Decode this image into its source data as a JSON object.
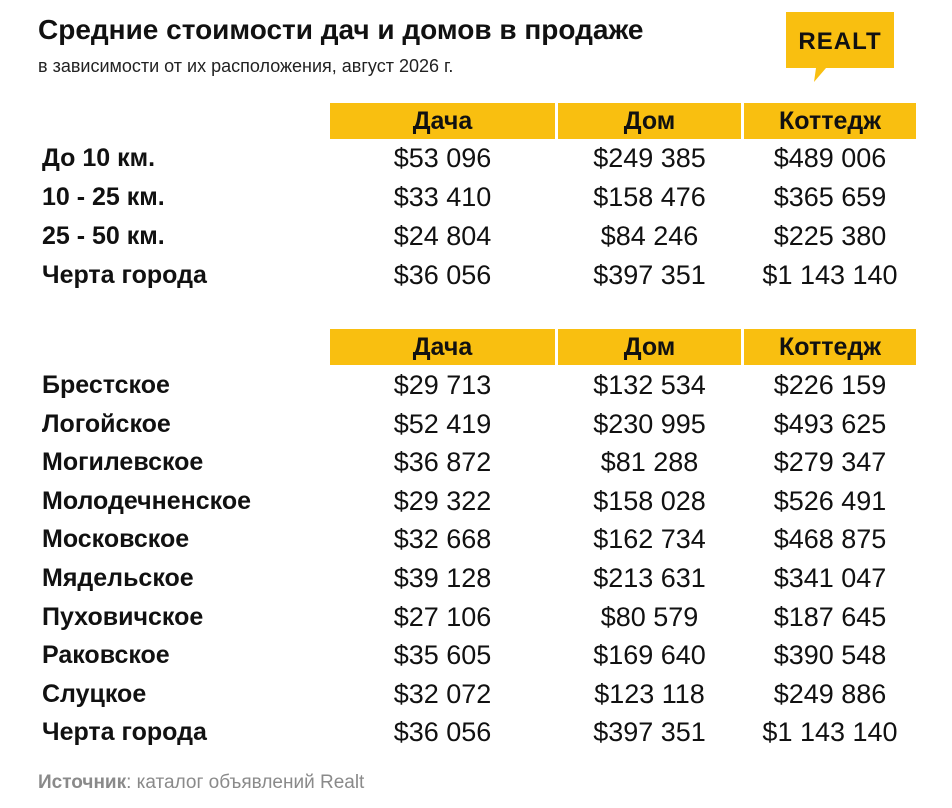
{
  "header": {
    "title": "Средние стоимости дач и домов в продаже",
    "subtitle": "в зависимости от их расположения, август 2026 г.",
    "logo_text": "REALT"
  },
  "colors": {
    "accent": "#f9bf10",
    "text": "#111111",
    "source": "#8a8a8a"
  },
  "chart_data": [
    {
      "type": "table",
      "columns": [
        "Дача",
        "Дом",
        "Коттедж"
      ],
      "rows": [
        {
          "label": "До 10 км.",
          "values": [
            "$53 096",
            "$249 385",
            "$489 006"
          ]
        },
        {
          "label": "10 - 25 км.",
          "values": [
            "$33 410",
            "$158 476",
            "$365 659"
          ]
        },
        {
          "label": "25 - 50 км.",
          "values": [
            "$24 804",
            "$84 246",
            "$225 380"
          ]
        },
        {
          "label": "Черта города",
          "values": [
            "$36 056",
            "$397 351",
            "$1 143 140"
          ]
        }
      ]
    },
    {
      "type": "table",
      "columns": [
        "Дача",
        "Дом",
        "Коттедж"
      ],
      "rows": [
        {
          "label": "Брестское",
          "values": [
            "$29 713",
            "$132 534",
            "$226 159"
          ]
        },
        {
          "label": "Логойское",
          "values": [
            "$52 419",
            "$230 995",
            "$493 625"
          ]
        },
        {
          "label": "Могилевское",
          "values": [
            "$36 872",
            "$81 288",
            "$279 347"
          ]
        },
        {
          "label": "Молодечненское",
          "values": [
            "$29 322",
            "$158 028",
            "$526 491"
          ]
        },
        {
          "label": "Московское",
          "values": [
            "$32 668",
            "$162 734",
            "$468 875"
          ]
        },
        {
          "label": "Мядельское",
          "values": [
            "$39 128",
            "$213 631",
            "$341 047"
          ]
        },
        {
          "label": "Пуховичское",
          "values": [
            "$27 106",
            "$80 579",
            "$187 645"
          ]
        },
        {
          "label": "Раковское",
          "values": [
            "$35 605",
            "$169 640",
            "$390 548"
          ]
        },
        {
          "label": "Слуцкое",
          "values": [
            "$32 072",
            "$123 118",
            "$249 886"
          ]
        },
        {
          "label": "Черта города",
          "values": [
            "$36 056",
            "$397 351",
            "$1 143 140"
          ]
        }
      ]
    }
  ],
  "footer": {
    "source_label": "Источник",
    "source_text": ": каталог объявлений Realt"
  }
}
